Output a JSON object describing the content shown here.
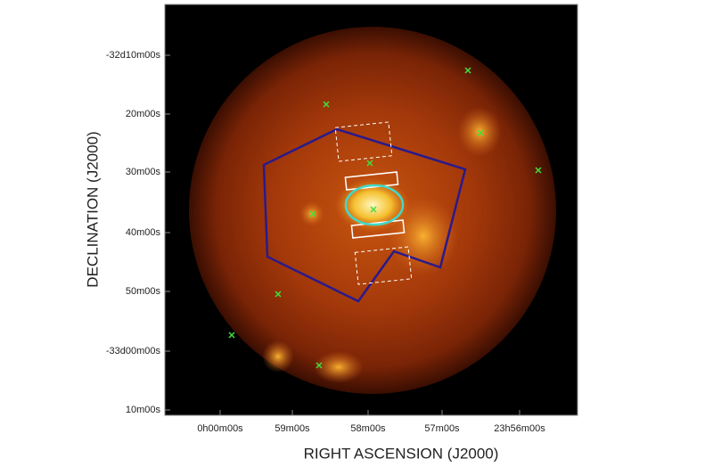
{
  "y_axis": {
    "label": "DECLINATION (J2000)",
    "ticks": [
      "-32d10m00s",
      "20m00s",
      "30m00s",
      "40m00s",
      "50m00s",
      "-33d00m00s",
      "10m00s"
    ]
  },
  "x_axis": {
    "label": "RIGHT ASCENSION (J2000)",
    "ticks": [
      "0h00m00s",
      "59m00s",
      "58m00s",
      "57m00s",
      "23h56m00s"
    ]
  }
}
